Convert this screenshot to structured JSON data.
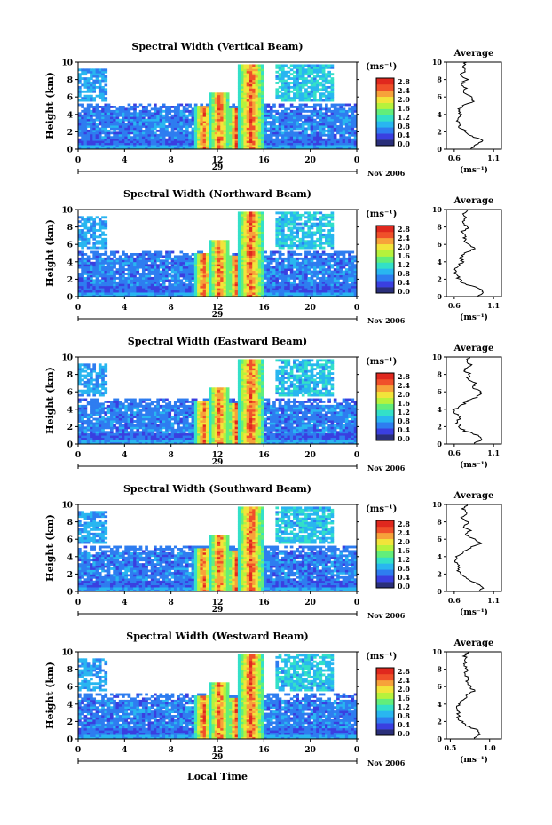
{
  "figure": {
    "colorbar_unit": "(ms⁻¹)",
    "colorbar_ticks": [
      "0.0",
      "0.4",
      "0.8",
      "1.2",
      "1.6",
      "2.0",
      "2.4",
      "2.8"
    ],
    "colormap": [
      "#2a2f7a",
      "#3a3fe0",
      "#2e7df0",
      "#29b6f0",
      "#33e0c8",
      "#62ee7a",
      "#b6f23c",
      "#f2e43a",
      "#f7a23a",
      "#f0502a",
      "#e0281e"
    ],
    "height_axis_label": "Height (km)",
    "time_axis_label": "Local Time",
    "date_label": "Nov 2006",
    "day_label": "29",
    "avg_title": "Average",
    "avg_xlabel": "(ms⁻¹)"
  },
  "chart_data": [
    {
      "type": "heatmap",
      "title": "Spectral Width (Vertical Beam)",
      "xlabel": "Local Time",
      "ylabel": "Height (km)",
      "xlim": [
        0,
        24
      ],
      "ylim": [
        0,
        10
      ],
      "xticks": [
        "0",
        "4",
        "8",
        "12",
        "16",
        "20",
        "0"
      ],
      "yticks": [
        "0",
        "2",
        "4",
        "6",
        "8",
        "10"
      ],
      "clim": [
        0,
        2.8
      ],
      "avg_profile": {
        "xticks": [
          "0.6",
          "1.1"
        ],
        "xlim": [
          0.5,
          1.2
        ],
        "heights": [
          0,
          0.5,
          1,
          1.5,
          2,
          2.5,
          3,
          3.5,
          4,
          4.5,
          5,
          5.5,
          6,
          6.5,
          7,
          7.5,
          8,
          8.5,
          9,
          9.5,
          10
        ],
        "values": [
          0.82,
          0.86,
          0.98,
          0.82,
          0.74,
          0.68,
          0.66,
          0.65,
          0.68,
          0.65,
          0.72,
          0.85,
          0.8,
          0.72,
          0.74,
          0.7,
          0.76,
          0.68,
          0.74,
          0.7,
          0.76
        ]
      }
    },
    {
      "type": "heatmap",
      "title": "Spectral Width (Northward Beam)",
      "xlabel": "Local Time",
      "ylabel": "Height (km)",
      "xlim": [
        0,
        24
      ],
      "ylim": [
        0,
        10
      ],
      "xticks": [
        "0",
        "4",
        "8",
        "12",
        "16",
        "20",
        "0"
      ],
      "yticks": [
        "0",
        "2",
        "4",
        "6",
        "8",
        "10"
      ],
      "clim": [
        0,
        2.8
      ],
      "avg_profile": {
        "xticks": [
          "0.6",
          "1.1"
        ],
        "xlim": [
          0.5,
          1.2
        ],
        "heights": [
          0,
          0.5,
          1,
          1.5,
          2,
          2.5,
          3,
          3.5,
          4,
          4.5,
          5,
          5.5,
          6,
          6.5,
          7,
          7.5,
          8,
          8.5,
          9,
          9.5,
          10
        ],
        "values": [
          0.88,
          0.98,
          0.9,
          0.72,
          0.66,
          0.63,
          0.62,
          0.64,
          0.7,
          0.68,
          0.74,
          0.86,
          0.8,
          0.72,
          0.76,
          0.7,
          0.78,
          0.7,
          0.74,
          0.72,
          0.78
        ]
      }
    },
    {
      "type": "heatmap",
      "title": "Spectral Width (Eastward Beam)",
      "xlabel": "Local Time",
      "ylabel": "Height (km)",
      "xlim": [
        0,
        24
      ],
      "ylim": [
        0,
        10
      ],
      "xticks": [
        "0",
        "4",
        "8",
        "12",
        "16",
        "20",
        "0"
      ],
      "yticks": [
        "0",
        "2",
        "4",
        "6",
        "8",
        "10"
      ],
      "clim": [
        0,
        2.8
      ],
      "avg_profile": {
        "xticks": [
          "0.6",
          "1.1"
        ],
        "xlim": [
          0.5,
          1.2
        ],
        "heights": [
          0,
          0.5,
          1,
          1.5,
          2,
          2.5,
          3,
          3.5,
          4,
          4.5,
          5,
          5.5,
          6,
          6.5,
          7,
          7.5,
          8,
          8.5,
          9,
          9.5,
          10
        ],
        "values": [
          0.84,
          0.96,
          0.9,
          0.74,
          0.66,
          0.64,
          0.66,
          0.62,
          0.6,
          0.7,
          0.78,
          0.9,
          0.96,
          0.82,
          0.88,
          0.76,
          0.8,
          0.72,
          0.82,
          0.74,
          0.8
        ]
      }
    },
    {
      "type": "heatmap",
      "title": "Spectral Width (Southward Beam)",
      "xlabel": "Local Time",
      "ylabel": "Height (km)",
      "xlim": [
        0,
        24
      ],
      "ylim": [
        0,
        10
      ],
      "xticks": [
        "0",
        "4",
        "8",
        "12",
        "16",
        "20",
        "0"
      ],
      "yticks": [
        "0",
        "2",
        "4",
        "6",
        "8",
        "10"
      ],
      "clim": [
        0,
        2.8
      ],
      "avg_profile": {
        "xticks": [
          "0.6",
          "1.1"
        ],
        "xlim": [
          0.5,
          1.2
        ],
        "heights": [
          0,
          0.5,
          1,
          1.5,
          2,
          2.5,
          3,
          3.5,
          4,
          4.5,
          5,
          5.5,
          6,
          6.5,
          7,
          7.5,
          8,
          8.5,
          9,
          9.5,
          10
        ],
        "values": [
          0.9,
          0.98,
          0.88,
          0.74,
          0.68,
          0.65,
          0.66,
          0.62,
          0.62,
          0.72,
          0.8,
          0.92,
          0.86,
          0.76,
          0.8,
          0.72,
          0.78,
          0.7,
          0.76,
          0.72,
          0.76
        ]
      }
    },
    {
      "type": "heatmap",
      "title": "Spectral Width (Westward Beam)",
      "xlabel": "Local Time",
      "ylabel": "Height (km)",
      "xlim": [
        0,
        24
      ],
      "ylim": [
        0,
        10
      ],
      "xticks": [
        "0",
        "4",
        "8",
        "12",
        "16",
        "20",
        "0"
      ],
      "yticks": [
        "0",
        "2",
        "4",
        "6",
        "8",
        "10"
      ],
      "clim": [
        0,
        2.8
      ],
      "avg_profile": {
        "xticks": [
          "0.5",
          "1.0"
        ],
        "xlim": [
          0.45,
          1.15
        ],
        "heights": [
          0,
          0.5,
          1,
          1.5,
          2,
          2.5,
          3,
          3.5,
          4,
          4.5,
          5,
          5.5,
          6,
          6.5,
          7,
          7.5,
          8,
          8.5,
          9,
          9.5,
          10
        ],
        "values": [
          0.8,
          0.86,
          0.84,
          0.7,
          0.64,
          0.6,
          0.6,
          0.58,
          0.62,
          0.66,
          0.72,
          0.8,
          0.76,
          0.7,
          0.74,
          0.68,
          0.72,
          0.66,
          0.7,
          0.68,
          0.72
        ]
      }
    }
  ]
}
